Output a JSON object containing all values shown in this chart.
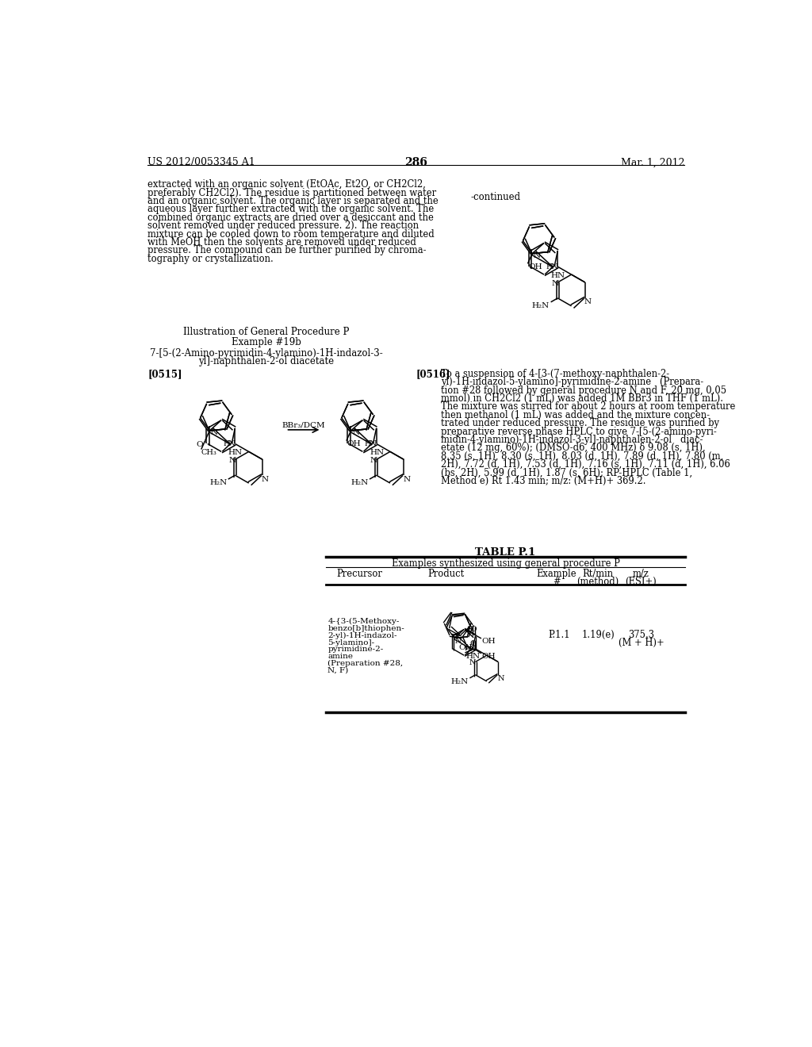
{
  "background_color": "#ffffff",
  "page_number": "286",
  "header_left": "US 2012/0053345 A1",
  "header_right": "Mar. 1, 2012",
  "paragraph_num_left": "[0515]",
  "paragraph_num_right": "[0516]",
  "reaction_arrow_label": "BBr3/DCM",
  "continued_label": "-continued",
  "procedure_title": "Illustration of General Procedure P",
  "example_title": "Example #19b",
  "compound_name_line1": "7-[5-(2-Amino-pyrimidin-4-ylamino)-1H-indazol-3-",
  "compound_name_line2": "yl]-naphthalen-2-ol diacetate",
  "table_title": "TABLE P.1",
  "table_subtitle": "Examples synthesized using general procedure P",
  "col_precursor": "Precursor",
  "col_product": "Product",
  "col_example": "Example",
  "col_example2": "#",
  "col_rt": "Rt/min",
  "col_rt2": "(method)",
  "col_mz": "m/z",
  "col_mz2": "(ESI+)",
  "precursor_lines": [
    "4-{3-(5-Methoxy-",
    "benzo[b]thiophen-",
    "2-yl)-1H-indazol-",
    "5-ylamino]-",
    "pyrimidine-2-",
    "amine",
    "(Preparation #28,",
    "N, F)"
  ],
  "example_val": "P.1.1",
  "rt_val": "1.19(e)",
  "mz_val1": "375.3",
  "mz_val2": "(M + H)+",
  "right_text_lines": [
    "To a suspension of 4-[3-(7-methoxy-naphthalen-2-",
    "yl)-1H-indazol-5-ylamino]-pyrimidine-2-amine   (Prepara-",
    "tion #28 followed by general procedure N and F, 20 mg, 0.05",
    "mmol) in CH2Cl2 (1 mL) was added 1M BBr3 in THF (1 mL).",
    "The mixture was stirred for about 2 hours at room temperature",
    "then methanol (1 mL) was added and the mixture concen-",
    "trated under reduced pressure. The residue was purified by",
    "preparative reverse phase HPLC to give 7-[5-(2-amino-pyri-",
    "midin-4-ylamino)-1H-indazol-3-yl]-naphthalen-2-ol   diac-",
    "etate (12 mg, 60%); (DMSO-d6, 400 MHz) δ 9.08 (s, 1H),",
    "8.35 (s, 1H), 8.30 (s, 1H), 8.03 (d, 1H), 7.89 (d, 1H), 7.80 (m,",
    "2H), 7.72 (d, 1H), 7.53 (d, 1H), 7.16 (s, 1H), 7.11 (d, 1H), 6.06",
    "(bs, 2H), 5.99 (d, 1H), 1.87 (s, 6H); RP-HPLC (Table 1,",
    "Method e) Rt 1.43 min; m/z: (M+H)+ 369.2."
  ],
  "left_text_lines": [
    "extracted with an organic solvent (EtOAc, Et2O, or CH2Cl2,",
    "preferably CH2Cl2). The residue is partitioned between water",
    "and an organic solvent. The organic layer is separated and the",
    "aqueous layer further extracted with the organic solvent. The",
    "combined organic extracts are dried over a desiccant and the",
    "solvent removed under reduced pressure. 2). The reaction",
    "mixture can be cooled down to room temperature and diluted",
    "with MeOH then the solvents are removed under reduced",
    "pressure. The compound can be further purified by chroma-",
    "tography or crystallization."
  ]
}
